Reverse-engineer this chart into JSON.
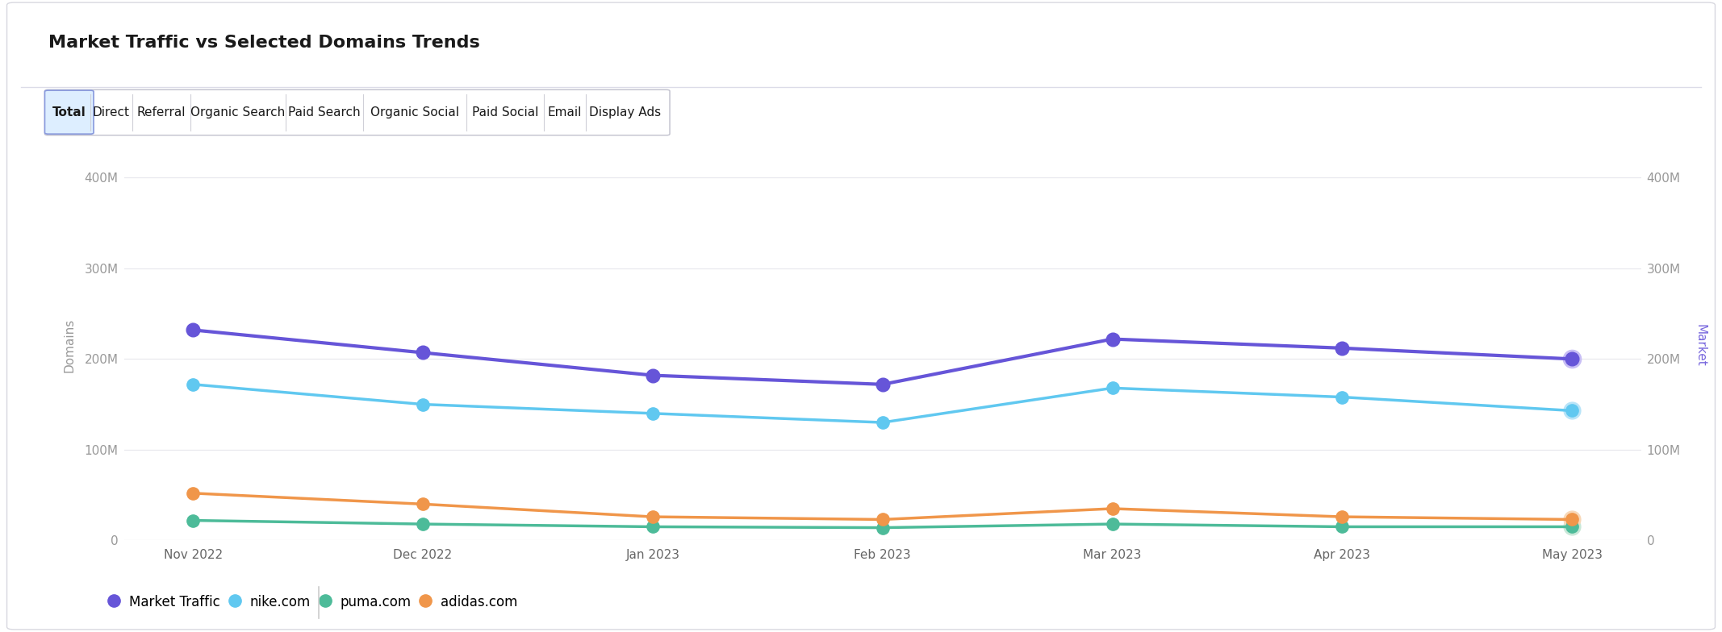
{
  "title": "Market Traffic vs Selected Domains Trends",
  "tabs": [
    "Total",
    "Direct",
    "Referral",
    "Organic Search",
    "Paid Search",
    "Organic Social",
    "Paid Social",
    "Email",
    "Display Ads"
  ],
  "active_tab": "Total",
  "x_labels": [
    "Nov 2022",
    "Dec 2022",
    "Jan 2023",
    "Feb 2023",
    "Mar 2023",
    "Apr 2023",
    "May 2023"
  ],
  "market_traffic": [
    232000000,
    207000000,
    182000000,
    172000000,
    222000000,
    212000000,
    200000000
  ],
  "nike": [
    172000000,
    150000000,
    140000000,
    130000000,
    168000000,
    158000000,
    143000000
  ],
  "puma": [
    22000000,
    18000000,
    15000000,
    14000000,
    18000000,
    15000000,
    15000000
  ],
  "adidas": [
    52000000,
    40000000,
    26000000,
    23000000,
    35000000,
    26000000,
    23000000
  ],
  "market_color": "#6655d8",
  "market_color_light": "#c8bef5",
  "nike_color": "#60c8f0",
  "nike_color_light": "#b8e4f8",
  "puma_color": "#4dbb99",
  "adidas_color": "#f0964a",
  "left_ylabel": "Domains",
  "right_ylabel": "Market",
  "right_ylabel_color": "#7766dd",
  "background_color": "#ffffff",
  "plot_bg_color": "#ffffff",
  "grid_color": "#e8e8ee",
  "y_ticks": [
    0,
    100000000,
    200000000,
    300000000,
    400000000
  ],
  "y_labels": [
    "0",
    "100M",
    "200M",
    "300M",
    "400M"
  ],
  "title_fontsize": 16,
  "axis_label_fontsize": 11,
  "tick_fontsize": 11,
  "legend_fontsize": 12,
  "tab_fontsize": 11
}
